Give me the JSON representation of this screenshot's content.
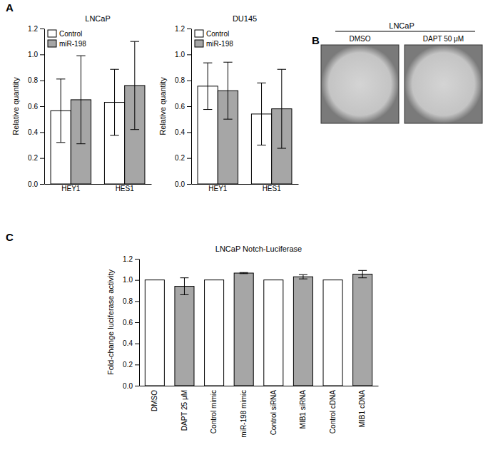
{
  "chart_data": [
    {
      "type": "bar",
      "annotations": [
        "A"
      ],
      "title": "LNCaP",
      "categories": [
        "HEY1",
        "HES1"
      ],
      "series": [
        {
          "name": "Control",
          "color": "#ffffff",
          "values": [
            0.565,
            0.63
          ],
          "errors": [
            0.245,
            0.255
          ]
        },
        {
          "name": "miR-198",
          "color": "#a6a6a6",
          "values": [
            0.65,
            0.76
          ],
          "errors": [
            0.34,
            0.34
          ]
        }
      ],
      "ylabel": "Relative quantity",
      "ylim": [
        0,
        1.2
      ],
      "yticks": [
        {
          "value": 0,
          "label": "0.0"
        },
        {
          "value": 0.2,
          "label": "0.2"
        },
        {
          "value": 0.4,
          "label": "0.4"
        },
        {
          "value": 0.6,
          "label": "0.6"
        },
        {
          "value": 0.8,
          "label": "0.8"
        },
        {
          "value": 1,
          "label": "1.0"
        },
        {
          "value": 1.2,
          "label": "1.2"
        }
      ],
      "legend": "upper left"
    },
    {
      "type": "bar",
      "title": "DU145",
      "categories": [
        "HEY1",
        "HES1"
      ],
      "series": [
        {
          "name": "Control",
          "color": "#ffffff",
          "values": [
            0.755,
            0.54
          ],
          "errors": [
            0.18,
            0.24
          ]
        },
        {
          "name": "miR-198",
          "color": "#a6a6a6",
          "values": [
            0.72,
            0.58
          ],
          "errors": [
            0.22,
            0.305
          ]
        }
      ],
      "ylabel": "Relative quantity",
      "ylim": [
        0,
        1.2
      ],
      "yticks": [
        {
          "value": 0,
          "label": "0.0"
        },
        {
          "value": 0.2,
          "label": "0.2"
        },
        {
          "value": 0.4,
          "label": "0.4"
        },
        {
          "value": 0.6,
          "label": "0.6"
        },
        {
          "value": 0.8,
          "label": "0.8"
        },
        {
          "value": 1,
          "label": "1.0"
        },
        {
          "value": 1.2,
          "label": "1.2"
        }
      ],
      "legend": "upper left"
    },
    {
      "type": "image",
      "annotations": [
        "B"
      ],
      "title": "LNCaP",
      "categories": [
        "DMSO",
        "DAPT 50 μM"
      ]
    },
    {
      "type": "bar",
      "annotations": [
        "C"
      ],
      "title": "LNCaP Notch-Luciferase",
      "categories": [
        "DMSO",
        "DAPT 25 μM",
        "Control mimic",
        "miR-198 mimic",
        "Control siRNA",
        "MIB1 siRNA",
        "Control cDNA",
        "MIB1 cDNA"
      ],
      "values": [
        1,
        0.94,
        1,
        1.065,
        1,
        1.03,
        1,
        1.055
      ],
      "errors": [
        null,
        0.08,
        null,
        0.005,
        null,
        0.02,
        null,
        0.035
      ],
      "colors": [
        "#ffffff",
        "#a6a6a6",
        "#ffffff",
        "#a6a6a6",
        "#ffffff",
        "#a6a6a6",
        "#ffffff",
        "#a6a6a6"
      ],
      "ylabel": "Fold-change luciferase activity",
      "ylim": [
        0,
        1.2
      ],
      "yticks": [
        {
          "value": 0,
          "label": "0.0"
        },
        {
          "value": 0.2,
          "label": "0.2"
        },
        {
          "value": 0.4,
          "label": "0.4"
        },
        {
          "value": 0.6,
          "label": "0.6"
        },
        {
          "value": 0.8,
          "label": "0.8"
        },
        {
          "value": 1,
          "label": "1.0"
        },
        {
          "value": 1.2,
          "label": "1.2"
        }
      ]
    }
  ]
}
